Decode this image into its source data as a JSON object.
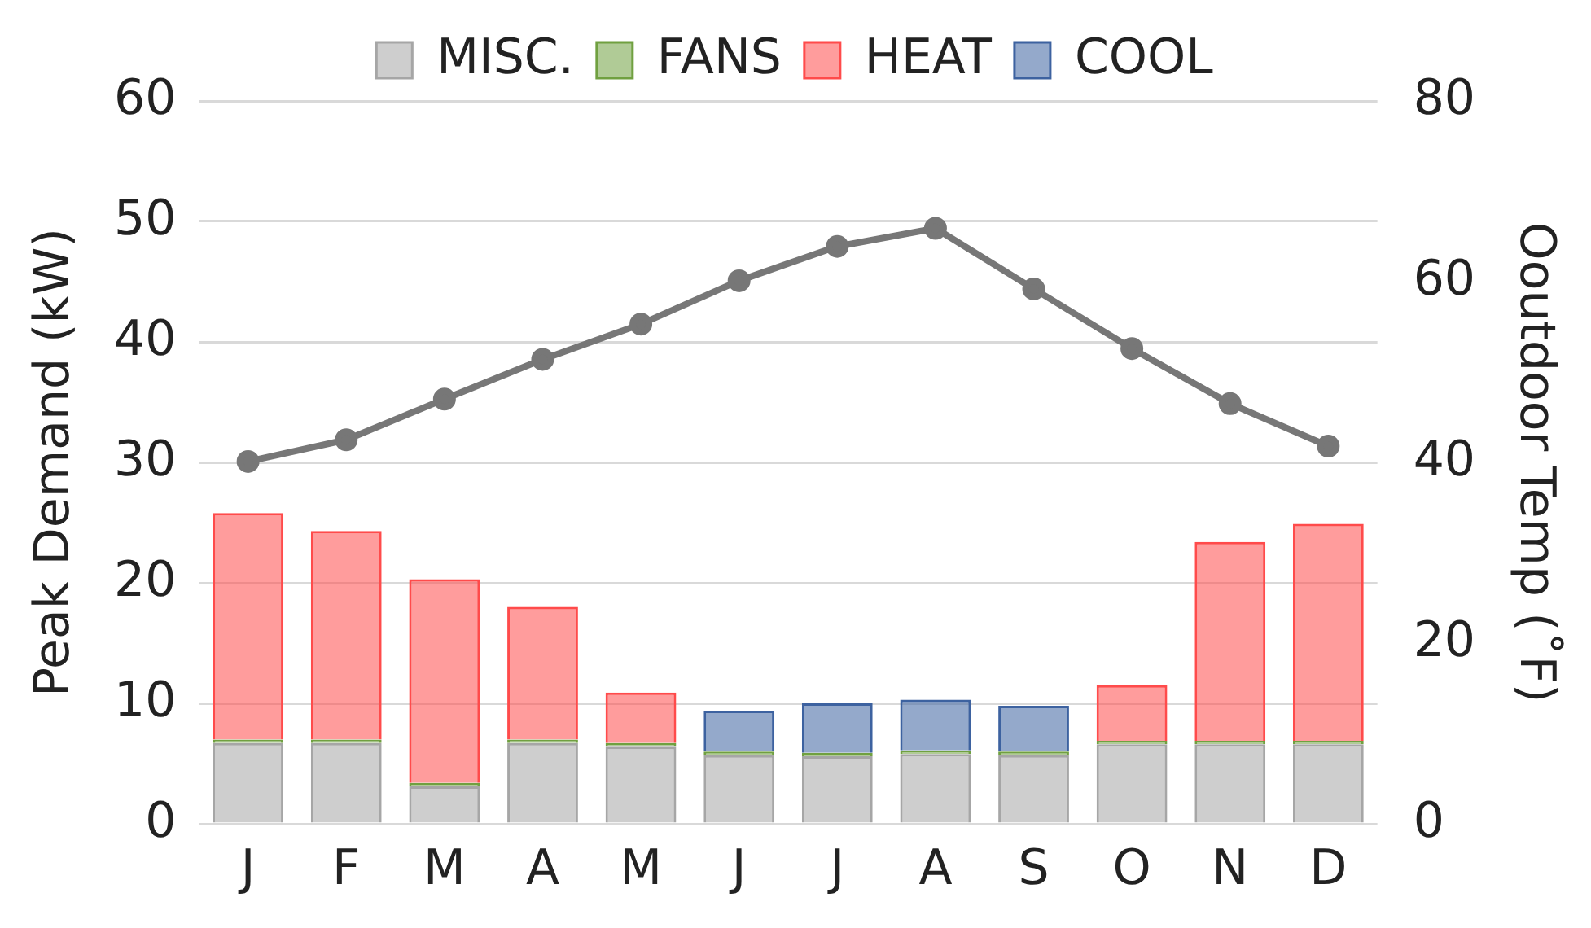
{
  "chart_data": {
    "type": "bar",
    "stacked": true,
    "categories": [
      "J",
      "F",
      "M",
      "A",
      "M",
      "J",
      "J",
      "A",
      "S",
      "O",
      "N",
      "D"
    ],
    "ylabel": "Peak Demand (kW)",
    "y2label": "Ooutdoor Temp (˚F)",
    "ylim": [
      0,
      60
    ],
    "yticks": [
      0,
      10,
      20,
      30,
      40,
      50,
      60
    ],
    "y2lim": [
      0,
      80
    ],
    "y2ticks": [
      0,
      20,
      40,
      60,
      80
    ],
    "grid": "y",
    "legend": "top",
    "series": [
      {
        "name": "MISC.",
        "color": "#a6a6a6",
        "values": [
          6.7,
          6.7,
          3.1,
          6.7,
          6.4,
          5.7,
          5.6,
          5.8,
          5.7,
          6.6,
          6.6,
          6.6
        ]
      },
      {
        "name": "FANS",
        "color": "#70a040",
        "values": [
          0.3,
          0.3,
          0.3,
          0.3,
          0.3,
          0.3,
          0.3,
          0.3,
          0.3,
          0.3,
          0.3,
          0.3
        ]
      },
      {
        "name": "HEAT",
        "color": "#ff4b4b",
        "values": [
          18.8,
          17.3,
          16.9,
          11.0,
          4.2,
          0,
          0,
          0,
          0,
          4.6,
          16.5,
          18.0
        ]
      },
      {
        "name": "COOL",
        "color": "#3d62a0",
        "values": [
          0,
          0,
          0,
          0,
          0,
          3.4,
          4.1,
          4.2,
          3.8,
          0,
          0,
          0
        ]
      },
      {
        "type": "line",
        "axis": "y2",
        "color": "#777777",
        "marker": "circle",
        "values": [
          40.1,
          42.5,
          47.0,
          51.4,
          55.3,
          60.1,
          63.9,
          65.9,
          59.2,
          52.6,
          46.5,
          41.8
        ]
      }
    ]
  }
}
